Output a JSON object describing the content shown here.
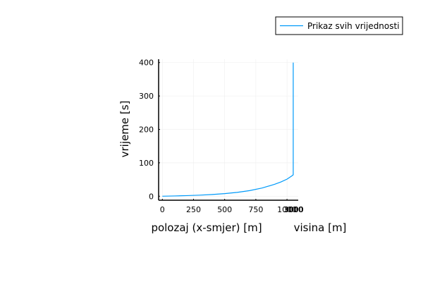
{
  "chart_data": {
    "type": "line",
    "title": "",
    "xlabel": "polozaj (x-smjer) [m]",
    "x2label": "visina [m]",
    "ylabel": "vrijeme [s]",
    "xlim": [
      -30,
      1090
    ],
    "ylim": [
      -12,
      410
    ],
    "grid": true,
    "xticks": [
      {
        "value": 0,
        "label": "0"
      },
      {
        "value": 250,
        "label": "250"
      },
      {
        "value": 500,
        "label": "500"
      },
      {
        "value": 750,
        "label": "750"
      },
      {
        "value": 1000,
        "label": "1000"
      }
    ],
    "x2ticks": [
      {
        "value": 1050,
        "label": "3000"
      },
      {
        "value": 1052,
        "label": "3000"
      },
      {
        "value": 1055,
        "label": "3000"
      }
    ],
    "yticks": [
      {
        "value": 0,
        "label": "0"
      },
      {
        "value": 100,
        "label": "100"
      },
      {
        "value": 200,
        "label": "200"
      },
      {
        "value": 300,
        "label": "300"
      },
      {
        "value": 400,
        "label": "400"
      }
    ],
    "legend_position": "top-right",
    "series": [
      {
        "name": "Prikaz svih vrijednosti",
        "color": "#009AFA",
        "x": [
          0,
          100,
          200,
          300,
          400,
          500,
          600,
          700,
          800,
          900,
          950,
          1000,
          1040,
          1050,
          1050
        ],
        "y": [
          0,
          0.8,
          1.8,
          3.2,
          5.1,
          7.8,
          11.5,
          16.8,
          24.5,
          35.5,
          42.5,
          51,
          61,
          64,
          400
        ]
      }
    ]
  },
  "colors": {
    "series": "#009AFA",
    "grid": "#eeeeee",
    "axis": "#000000"
  }
}
